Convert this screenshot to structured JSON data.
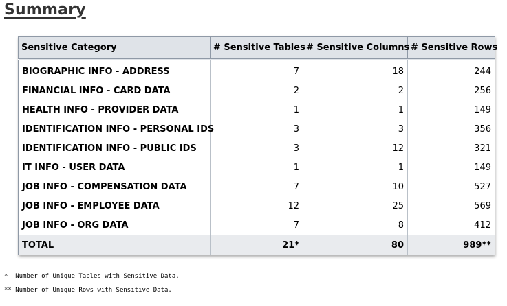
{
  "page": {
    "title": "Summary"
  },
  "table": {
    "headers": {
      "category": "Sensitive Category",
      "tables": "# Sensitive Tables",
      "columns": "# Sensitive Columns",
      "rows": "# Sensitive Rows"
    },
    "rows": [
      {
        "category": "BIOGRAPHIC INFO - ADDRESS",
        "tables": "7",
        "columns": "18",
        "rows": "244"
      },
      {
        "category": "FINANCIAL INFO - CARD DATA",
        "tables": "2",
        "columns": "2",
        "rows": "256"
      },
      {
        "category": "HEALTH INFO - PROVIDER DATA",
        "tables": "1",
        "columns": "1",
        "rows": "149"
      },
      {
        "category": "IDENTIFICATION INFO - PERSONAL IDS",
        "tables": "3",
        "columns": "3",
        "rows": "356"
      },
      {
        "category": "IDENTIFICATION INFO - PUBLIC IDS",
        "tables": "3",
        "columns": "12",
        "rows": "321"
      },
      {
        "category": "IT INFO - USER DATA",
        "tables": "1",
        "columns": "1",
        "rows": "149"
      },
      {
        "category": "JOB INFO - COMPENSATION DATA",
        "tables": "7",
        "columns": "10",
        "rows": "527"
      },
      {
        "category": "JOB INFO - EMPLOYEE DATA",
        "tables": "12",
        "columns": "25",
        "rows": "569"
      },
      {
        "category": "JOB INFO - ORG DATA",
        "tables": "7",
        "columns": "8",
        "rows": "412"
      }
    ],
    "total": {
      "category": "TOTAL",
      "tables": "21*",
      "columns": "80",
      "rows": "989**"
    }
  },
  "footnotes": {
    "tables_note": "*  Number of Unique Tables with Sensitive Data.",
    "rows_note": "** Number of Unique Rows with Sensitive Data."
  }
}
